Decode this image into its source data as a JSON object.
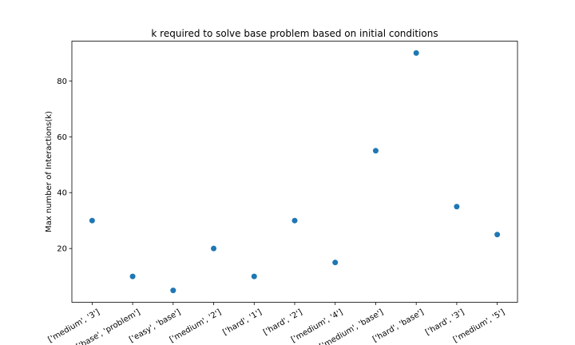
{
  "chart_data": {
    "type": "scatter",
    "title": "k required to solve base problem based on initial conditions",
    "xlabel": "",
    "ylabel": "Max number of Interactions(k)",
    "categories": [
      "['medium', '3']",
      "['base', 'problem']",
      "['easy', 'base']",
      "['medium', '2']",
      "['hard', '1']",
      "['hard', '2']",
      "['medium', '4']",
      "['medium', 'base']",
      "['hard', 'base']",
      "['hard', '3']",
      "['medium', '5']"
    ],
    "values": [
      30,
      10,
      5,
      20,
      10,
      30,
      15,
      55,
      90,
      35,
      25
    ],
    "yticks": [
      20,
      40,
      60,
      80
    ],
    "ylim": [
      0.75,
      94.25
    ],
    "grid": false,
    "marker_color": "#1f77b4"
  }
}
